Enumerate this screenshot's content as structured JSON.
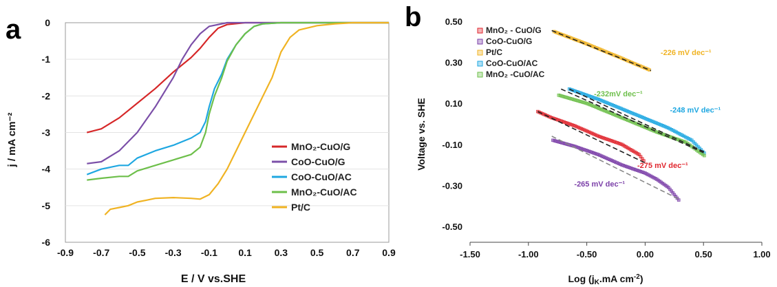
{
  "chart_data": [
    {
      "panel": "a",
      "type": "line",
      "xlabel": "E / V vs.SHE",
      "ylabel": "j / mA cm⁻²",
      "xlim": [
        -0.9,
        0.9
      ],
      "ylim": [
        -6,
        0
      ],
      "xticks": [
        "-0.9",
        "-0.7",
        "-0.5",
        "-0.3",
        "-0.1",
        "0.1",
        "0.3",
        "0.5",
        "0.7",
        "0.9"
      ],
      "xtick_values": [
        -0.9,
        -0.7,
        -0.5,
        -0.3,
        -0.1,
        0.1,
        0.3,
        0.5,
        0.7,
        0.9
      ],
      "yticks": [
        "0",
        "-1",
        "-2",
        "-3",
        "-4",
        "-5",
        "-6"
      ],
      "ytick_values": [
        0,
        -1,
        -2,
        -3,
        -4,
        -5,
        -6
      ],
      "legend_position": "lower-right",
      "series": [
        {
          "name": "MnO₂-CuO/G",
          "color": "#d62728",
          "x": [
            -0.78,
            -0.7,
            -0.6,
            -0.5,
            -0.4,
            -0.3,
            -0.2,
            -0.15,
            -0.1,
            -0.05,
            0.0,
            0.1,
            0.3,
            0.5,
            0.7,
            0.9
          ],
          "y": [
            -3.0,
            -2.9,
            -2.6,
            -2.2,
            -1.8,
            -1.35,
            -0.95,
            -0.7,
            -0.4,
            -0.15,
            -0.05,
            0.0,
            0.0,
            0.0,
            0.0,
            0.0
          ]
        },
        {
          "name": "CoO-CuO/G",
          "color": "#7b4fa8",
          "x": [
            -0.78,
            -0.7,
            -0.6,
            -0.5,
            -0.4,
            -0.3,
            -0.25,
            -0.2,
            -0.15,
            -0.1,
            0.0,
            0.1,
            0.3,
            0.5,
            0.7,
            0.9
          ],
          "y": [
            -3.85,
            -3.8,
            -3.5,
            -3.0,
            -2.3,
            -1.5,
            -1.0,
            -0.6,
            -0.3,
            -0.1,
            0.0,
            0.0,
            0.0,
            0.0,
            0.0,
            0.0
          ]
        },
        {
          "name": "CoO-CuO/AC",
          "color": "#1ea7e1",
          "x": [
            -0.78,
            -0.7,
            -0.6,
            -0.55,
            -0.5,
            -0.4,
            -0.3,
            -0.2,
            -0.15,
            -0.12,
            -0.1,
            -0.07,
            -0.03,
            0.0,
            0.05,
            0.1,
            0.15,
            0.2,
            0.3,
            0.5,
            0.7,
            0.9
          ],
          "y": [
            -4.15,
            -4.0,
            -3.9,
            -3.9,
            -3.7,
            -3.5,
            -3.35,
            -3.15,
            -3.0,
            -2.7,
            -2.3,
            -1.8,
            -1.4,
            -1.0,
            -0.6,
            -0.3,
            -0.1,
            -0.03,
            0.0,
            0.0,
            0.0,
            0.0
          ]
        },
        {
          "name": "MnO₂-CuO/AC",
          "color": "#6dbf4a",
          "x": [
            -0.78,
            -0.7,
            -0.6,
            -0.55,
            -0.5,
            -0.4,
            -0.3,
            -0.2,
            -0.15,
            -0.12,
            -0.1,
            -0.07,
            -0.03,
            0.0,
            0.05,
            0.1,
            0.15,
            0.2,
            0.3,
            0.5,
            0.7,
            0.9
          ],
          "y": [
            -4.3,
            -4.25,
            -4.2,
            -4.2,
            -4.05,
            -3.9,
            -3.75,
            -3.6,
            -3.4,
            -3.0,
            -2.5,
            -2.0,
            -1.5,
            -1.05,
            -0.6,
            -0.3,
            -0.1,
            -0.03,
            0.0,
            0.0,
            0.0,
            0.0
          ]
        },
        {
          "name": "Pt/C",
          "color": "#f0b323",
          "x": [
            -0.68,
            -0.65,
            -0.6,
            -0.55,
            -0.5,
            -0.45,
            -0.4,
            -0.3,
            -0.2,
            -0.15,
            -0.1,
            -0.05,
            0.0,
            0.05,
            0.1,
            0.15,
            0.2,
            0.25,
            0.3,
            0.35,
            0.4,
            0.5,
            0.6,
            0.7,
            0.8,
            0.9
          ],
          "y": [
            -5.25,
            -5.1,
            -5.05,
            -5.0,
            -4.9,
            -4.85,
            -4.8,
            -4.78,
            -4.8,
            -4.82,
            -4.7,
            -4.4,
            -4.0,
            -3.5,
            -3.0,
            -2.5,
            -2.0,
            -1.5,
            -0.8,
            -0.4,
            -0.2,
            -0.08,
            -0.03,
            0.0,
            0.0,
            0.0
          ]
        }
      ]
    },
    {
      "panel": "b",
      "type": "scatter",
      "xlabel_main": "Log (j",
      "xlabel_sub": "K",
      "xlabel_rest": ".mA cm",
      "xlabel_sup": "-2",
      "xlabel_close": ")",
      "ylabel": "Voltage vs. SHE",
      "xlim": [
        -1.5,
        1.0
      ],
      "ylim": [
        -0.5,
        0.5
      ],
      "xticks": [
        "-1.50",
        "-1.00",
        "-0.50",
        "0.00",
        "0.50",
        "1.00"
      ],
      "xtick_values": [
        -1.5,
        -1.0,
        -0.5,
        0.0,
        0.5,
        1.0
      ],
      "yticks": [
        "0.50",
        "0.30",
        "0.10",
        "-0.10",
        "-0.30",
        "-0.50"
      ],
      "ytick_values": [
        0.5,
        0.3,
        0.1,
        -0.1,
        -0.3,
        -0.5
      ],
      "legend_position": "top-left",
      "series": [
        {
          "name": "MnO₂ - CuO/G",
          "color": "#e0262e",
          "x_start": -0.92,
          "x_end": 0.0,
          "y_start": 0.06,
          "y_end": -0.19,
          "curve": [
            [
              -0.92,
              0.06
            ],
            [
              -0.8,
              0.03
            ],
            [
              -0.6,
              -0.01
            ],
            [
              -0.4,
              -0.06
            ],
            [
              -0.2,
              -0.1
            ],
            [
              -0.05,
              -0.15
            ],
            [
              0.0,
              -0.19
            ]
          ],
          "fit": [
            [
              -0.92,
              0.06
            ],
            [
              0.0,
              -0.19
            ]
          ],
          "slope_label": "-275 mV dec⁻¹",
          "slope_label_pos": [
            0.15,
            -0.215
          ],
          "label_color": "#e0262e"
        },
        {
          "name": "CoO-CuO/G",
          "color": "#7b3fa8",
          "x_start": -0.79,
          "x_end": 0.3,
          "y_start": -0.08,
          "y_end": -0.38,
          "curve": [
            [
              -0.79,
              -0.08
            ],
            [
              -0.6,
              -0.11
            ],
            [
              -0.4,
              -0.15
            ],
            [
              -0.2,
              -0.2
            ],
            [
              0.0,
              -0.24
            ],
            [
              0.1,
              -0.27
            ],
            [
              0.2,
              -0.31
            ],
            [
              0.3,
              -0.38
            ]
          ],
          "fit": [
            [
              -0.8,
              -0.06
            ],
            [
              0.3,
              -0.37
            ]
          ],
          "slope_label": "-265 mV dec⁻¹",
          "slope_label_pos": [
            -0.39,
            -0.305
          ],
          "label_color": "#7b3fa8"
        },
        {
          "name": "Pt/C",
          "color": "#f0b323",
          "x_start": -0.78,
          "x_end": 0.05,
          "y_start": 0.45,
          "y_end": 0.26,
          "curve": [
            [
              -0.78,
              0.45
            ],
            [
              -0.5,
              0.39
            ],
            [
              -0.2,
              0.32
            ],
            [
              0.05,
              0.26
            ]
          ],
          "fit": [
            [
              -0.8,
              0.455
            ],
            [
              0.05,
              0.26
            ]
          ],
          "slope_label": "-226 mV dec⁻¹",
          "slope_label_pos": [
            0.35,
            0.335
          ],
          "label_color": "#f0b323"
        },
        {
          "name": "CoO-CuO/AC",
          "color": "#1ea7e1",
          "x_start": -0.65,
          "x_end": 0.52,
          "y_start": 0.17,
          "y_end": -0.15,
          "curve": [
            [
              -0.65,
              0.17
            ],
            [
              -0.4,
              0.12
            ],
            [
              -0.1,
              0.05
            ],
            [
              0.2,
              -0.02
            ],
            [
              0.4,
              -0.08
            ],
            [
              0.52,
              -0.15
            ]
          ],
          "fit": [
            [
              -0.65,
              0.17
            ],
            [
              0.52,
              -0.14
            ]
          ],
          "slope_label": "-248 mV dec⁻¹",
          "slope_label_pos": [
            0.43,
            0.055
          ],
          "label_color": "#1ea7e1"
        },
        {
          "name": "MnO₂ -CuO/AC",
          "color": "#6dbf4a",
          "x_start": -0.74,
          "x_end": 0.52,
          "y_start": 0.14,
          "y_end": -0.16,
          "curve": [
            [
              -0.74,
              0.14
            ],
            [
              -0.5,
              0.1
            ],
            [
              -0.2,
              0.03
            ],
            [
              0.1,
              -0.04
            ],
            [
              0.35,
              -0.09
            ],
            [
              0.52,
              -0.16
            ]
          ],
          "fit": [
            [
              -0.72,
              0.17
            ],
            [
              0.5,
              -0.14
            ]
          ],
          "slope_label": "-232mV dec⁻¹",
          "slope_label_pos": [
            -0.23,
            0.135
          ],
          "label_color": "#6dbf4a"
        }
      ]
    }
  ],
  "panel_labels": {
    "a": "a",
    "b": "b"
  }
}
